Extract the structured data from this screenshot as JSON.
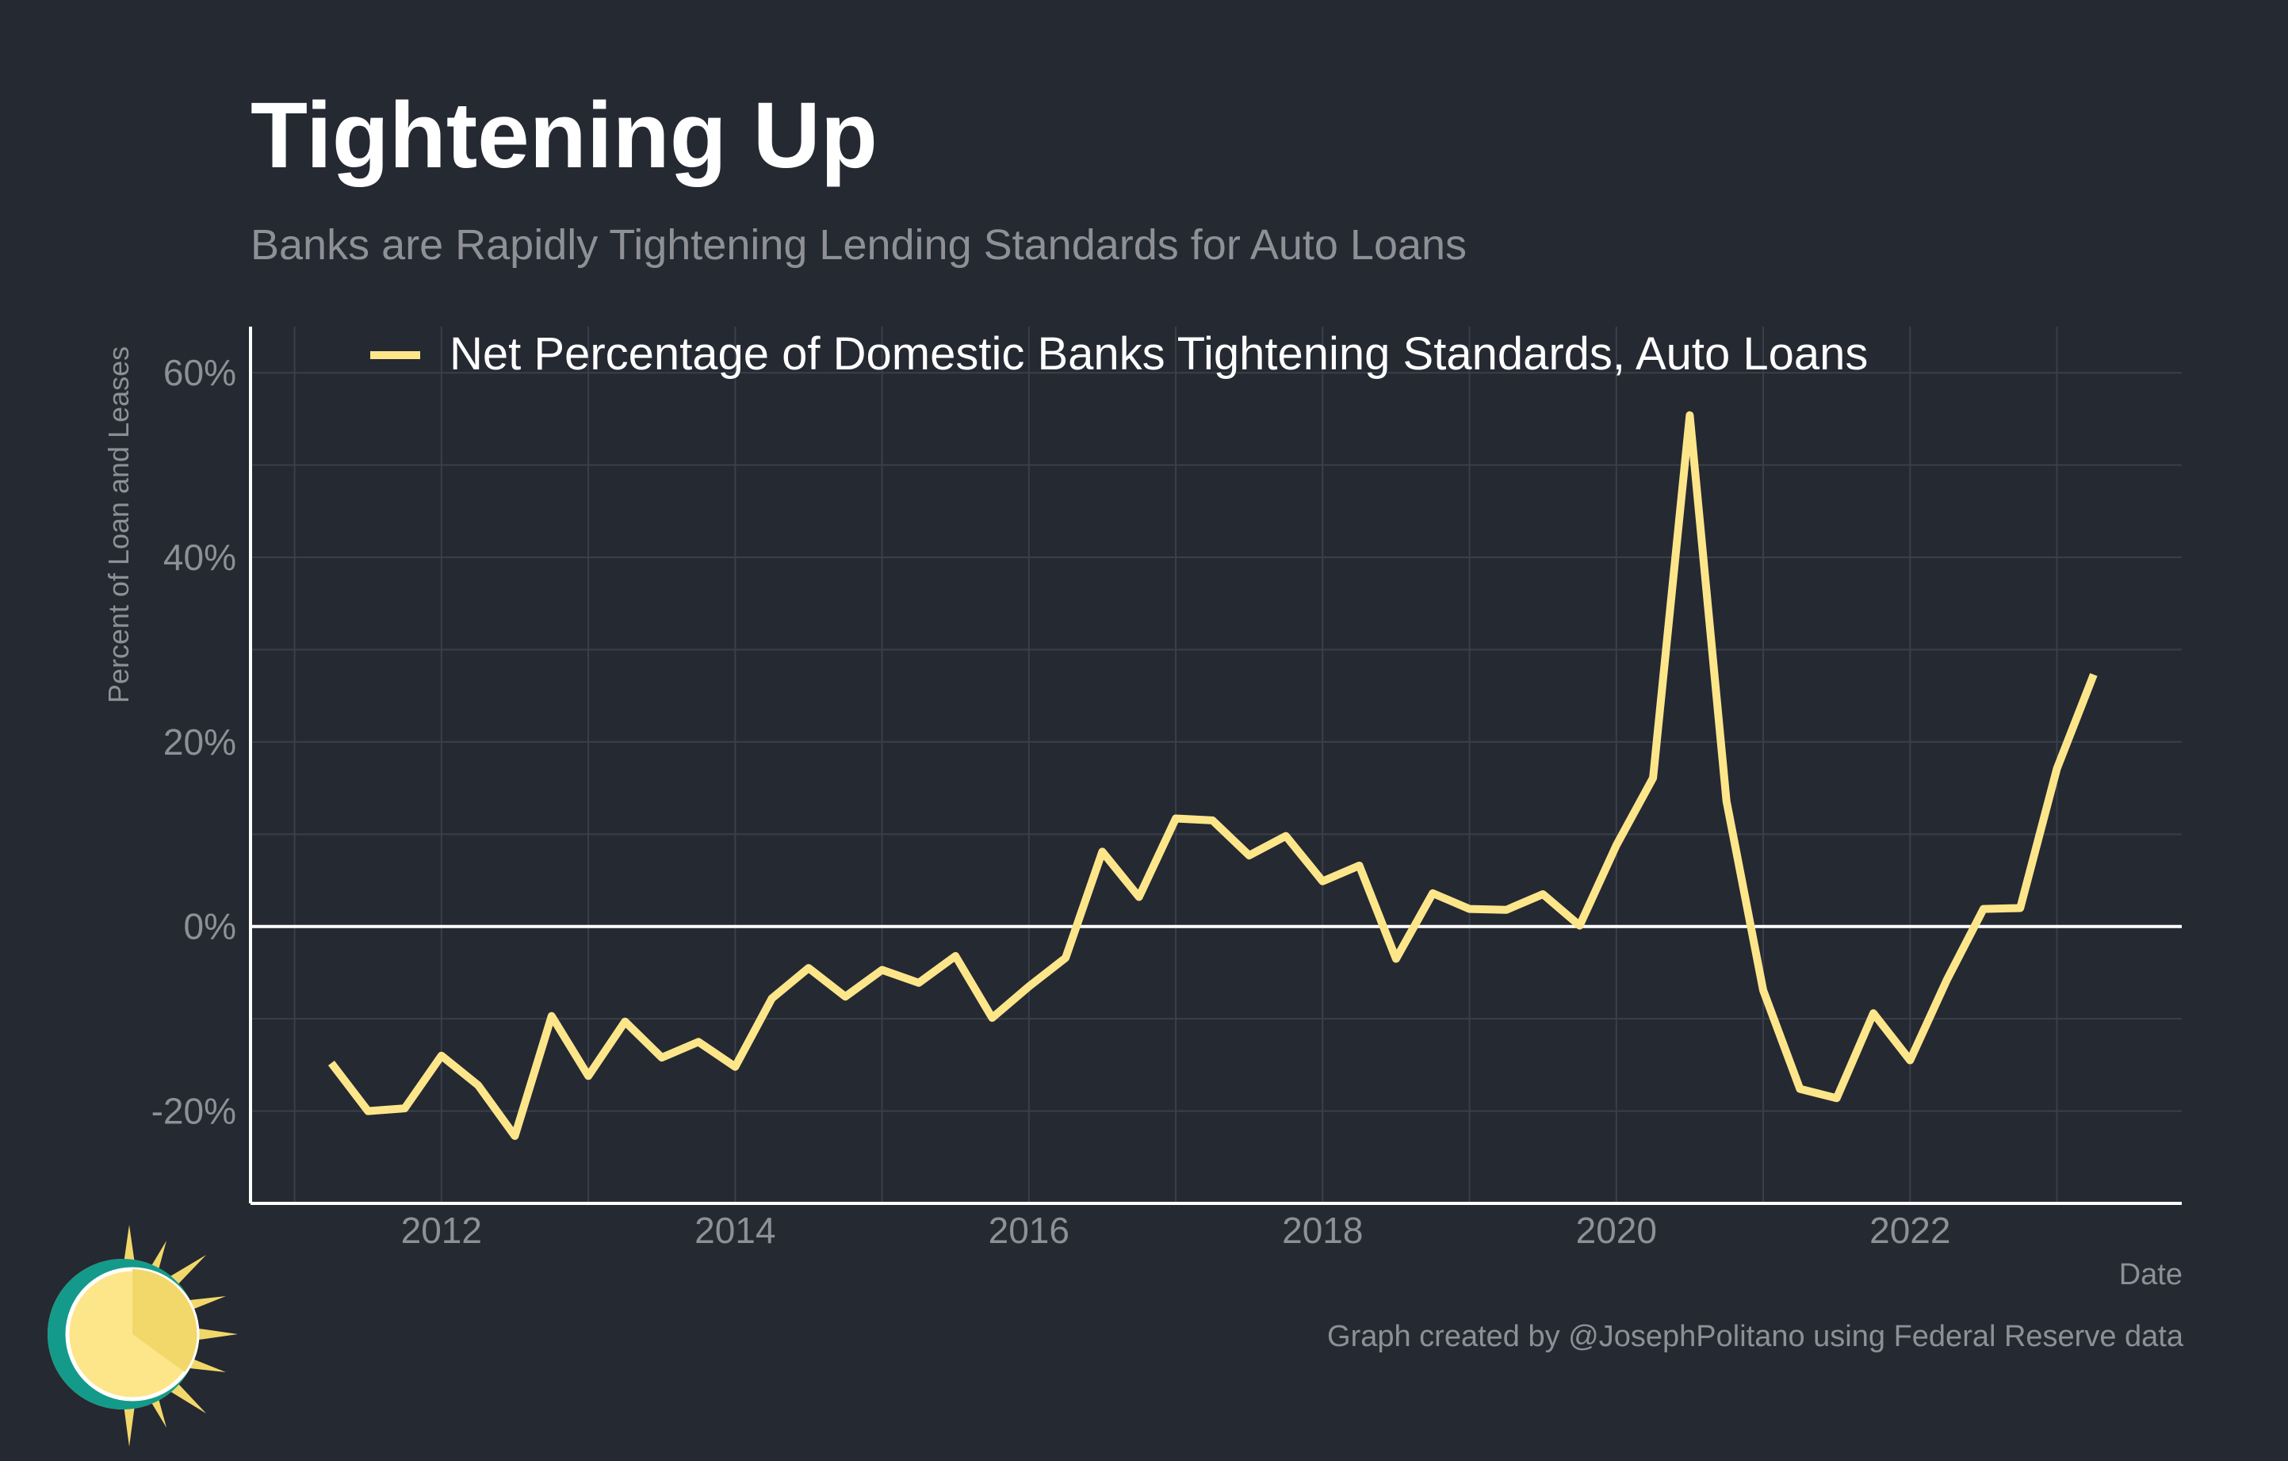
{
  "header": {
    "title": "Tightening Up",
    "subtitle": "Banks are Rapidly Tightening Lending Standards for Auto Loans"
  },
  "footer": {
    "caption": "Graph created by @JosephPolitano using Federal Reserve data"
  },
  "colors": {
    "background": "#252932",
    "series": "#fde68a",
    "axis_text": "#8e9096",
    "gridline": "#3a3f4a",
    "zero_line": "#ffffff"
  },
  "chart_data": {
    "type": "line",
    "xlabel": "Date",
    "ylabel": "Percent of Loan and Leases",
    "xlim": [
      2010.7,
      2023.85
    ],
    "ylim": [
      -30,
      65
    ],
    "x_ticks": [
      2012,
      2014,
      2016,
      2018,
      2020,
      2022
    ],
    "x_tick_labels": [
      "2012",
      "2014",
      "2016",
      "2018",
      "2020",
      "2022"
    ],
    "y_ticks": [
      -20,
      0,
      20,
      40,
      60
    ],
    "y_tick_labels": [
      "-20%",
      "0%",
      "20%",
      "40%",
      "60%"
    ],
    "grid": true,
    "legend_position": "top",
    "series": [
      {
        "name": "Net Percentage of Domestic Banks Tightening Standards, Auto Loans",
        "color": "#fde68a",
        "points": [
          [
            2011.25,
            -14.8
          ],
          [
            2011.5,
            -20.0
          ],
          [
            2011.75,
            -19.7
          ],
          [
            2012.0,
            -14.0
          ],
          [
            2012.25,
            -17.2
          ],
          [
            2012.5,
            -22.7
          ],
          [
            2012.75,
            -9.7
          ],
          [
            2013.0,
            -16.2
          ],
          [
            2013.25,
            -10.3
          ],
          [
            2013.5,
            -14.2
          ],
          [
            2013.75,
            -12.5
          ],
          [
            2014.0,
            -15.2
          ],
          [
            2014.25,
            -7.8
          ],
          [
            2014.5,
            -4.5
          ],
          [
            2014.75,
            -7.6
          ],
          [
            2015.0,
            -4.7
          ],
          [
            2015.25,
            -6.1
          ],
          [
            2015.5,
            -3.2
          ],
          [
            2015.75,
            -9.9
          ],
          [
            2016.0,
            -6.5
          ],
          [
            2016.25,
            -3.4
          ],
          [
            2016.5,
            8.1
          ],
          [
            2016.75,
            3.2
          ],
          [
            2017.0,
            11.7
          ],
          [
            2017.25,
            11.5
          ],
          [
            2017.5,
            7.7
          ],
          [
            2017.75,
            9.8
          ],
          [
            2018.0,
            4.9
          ],
          [
            2018.25,
            6.6
          ],
          [
            2018.5,
            -3.5
          ],
          [
            2018.75,
            3.6
          ],
          [
            2019.0,
            1.9
          ],
          [
            2019.25,
            1.8
          ],
          [
            2019.5,
            3.5
          ],
          [
            2019.75,
            0.1
          ],
          [
            2020.0,
            8.8
          ],
          [
            2020.25,
            16.1
          ],
          [
            2020.5,
            55.4
          ],
          [
            2020.75,
            13.6
          ],
          [
            2021.0,
            -6.9
          ],
          [
            2021.25,
            -17.6
          ],
          [
            2021.5,
            -18.6
          ],
          [
            2021.75,
            -9.4
          ],
          [
            2022.0,
            -14.5
          ],
          [
            2022.25,
            -5.8
          ],
          [
            2022.5,
            1.9
          ],
          [
            2022.75,
            2.0
          ],
          [
            2023.0,
            17.1
          ],
          [
            2023.25,
            27.3
          ]
        ]
      }
    ]
  }
}
